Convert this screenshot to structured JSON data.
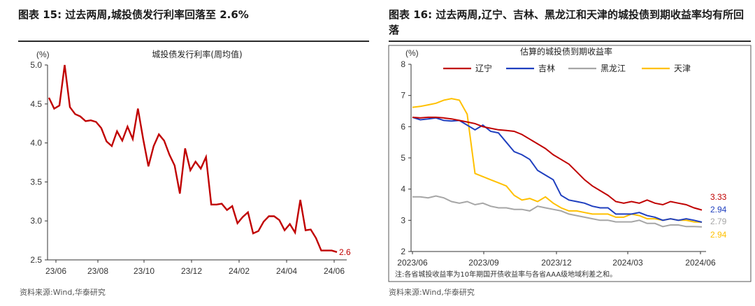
{
  "left": {
    "title": "图表 15:   过去两周,城投债发行利率回落至 2.6%",
    "source": "资料来源:Wind,华泰研究"
  },
  "right": {
    "title": "图表 16:   过去两周,辽宁、吉林、黑龙江和天津的城投债到期收益率均有所回落",
    "source": "资料来源:Wind,华泰研究"
  },
  "chart_data": [
    {
      "type": "line",
      "title": "城投债发行利率(周均值)",
      "ylabel": "(%)",
      "ylim": [
        2.5,
        5.0
      ],
      "yticks": [
        "2.5",
        "3.0",
        "3.5",
        "4.0",
        "4.5",
        "5.0"
      ],
      "xticks": [
        "23/06",
        "23/08",
        "23/10",
        "23/12",
        "24/02",
        "24/04",
        "24/06"
      ],
      "series": [
        {
          "name": "城投债发行利率",
          "color": "#c00000",
          "values": [
            4.58,
            4.44,
            4.48,
            5.0,
            4.46,
            4.37,
            4.34,
            4.28,
            4.29,
            4.27,
            4.19,
            4.02,
            3.96,
            4.15,
            4.03,
            4.21,
            4.05,
            4.44,
            4.05,
            3.7,
            3.96,
            4.11,
            4.03,
            3.85,
            3.71,
            3.35,
            3.93,
            3.65,
            3.76,
            3.67,
            3.82,
            3.21,
            3.21,
            3.22,
            3.14,
            3.19,
            2.97,
            3.05,
            3.11,
            2.84,
            2.87,
            2.99,
            3.06,
            3.06,
            3.01,
            2.88,
            2.96,
            2.85,
            3.27,
            2.88,
            2.89,
            2.78,
            2.62,
            2.62,
            2.62,
            2.6
          ]
        }
      ],
      "end_label": "2.6"
    },
    {
      "type": "line",
      "title": "估算的城投债到期收益率",
      "ylabel": "(%)",
      "ylim": [
        2,
        8
      ],
      "yticks": [
        "2",
        "3",
        "4",
        "5",
        "6",
        "7",
        "8"
      ],
      "xticks": [
        "2023/06",
        "2023/09",
        "2023/12",
        "2024/03",
        "2024/06"
      ],
      "series": [
        {
          "name": "辽宁",
          "color": "#c00000",
          "end_label": "3.33",
          "values": [
            6.3,
            6.28,
            6.3,
            6.3,
            6.28,
            6.25,
            6.2,
            6.15,
            6.1,
            6.0,
            5.95,
            5.9,
            5.88,
            5.85,
            5.75,
            5.6,
            5.45,
            5.3,
            5.1,
            4.95,
            4.8,
            4.55,
            4.3,
            4.1,
            3.95,
            3.8,
            3.6,
            3.55,
            3.6,
            3.55,
            3.65,
            3.55,
            3.5,
            3.6,
            3.55,
            3.5,
            3.4,
            3.33
          ]
        },
        {
          "name": "吉林",
          "color": "#1f3fbf",
          "end_label": "2.94",
          "values": [
            6.3,
            6.22,
            6.25,
            6.28,
            6.2,
            6.18,
            6.2,
            6.05,
            5.9,
            6.05,
            5.85,
            5.8,
            5.5,
            5.2,
            5.1,
            4.95,
            4.6,
            4.45,
            4.3,
            3.8,
            3.65,
            3.6,
            3.55,
            3.45,
            3.4,
            3.4,
            3.2,
            3.2,
            3.2,
            3.25,
            3.15,
            3.1,
            3.0,
            3.05,
            3.0,
            3.05,
            3.0,
            2.94
          ]
        },
        {
          "name": "黑龙江",
          "color": "#a6a6a6",
          "end_label": "2.79",
          "values": [
            3.75,
            3.75,
            3.72,
            3.78,
            3.72,
            3.6,
            3.55,
            3.6,
            3.5,
            3.55,
            3.45,
            3.4,
            3.4,
            3.35,
            3.35,
            3.3,
            3.45,
            3.4,
            3.35,
            3.3,
            3.2,
            3.15,
            3.1,
            3.05,
            3.0,
            3.0,
            2.95,
            2.95,
            2.95,
            3.0,
            2.9,
            2.9,
            2.8,
            2.85,
            2.85,
            2.8,
            2.8,
            2.79
          ]
        },
        {
          "name": "天津",
          "color": "#ffc000",
          "end_label": "2.94",
          "values": [
            6.62,
            6.65,
            6.7,
            6.75,
            6.85,
            6.9,
            6.85,
            6.4,
            4.5,
            4.4,
            4.3,
            4.2,
            4.1,
            3.8,
            3.65,
            3.7,
            3.6,
            3.75,
            3.55,
            3.4,
            3.3,
            3.3,
            3.25,
            3.2,
            3.2,
            3.2,
            3.1,
            3.1,
            3.2,
            3.15,
            3.05,
            3.05,
            3.0,
            3.05,
            3.0,
            3.0,
            2.95,
            2.94
          ]
        }
      ],
      "note": "注:各省城投收益率为10年期国开债收益率与各省AAA级地域利差之和。"
    }
  ]
}
